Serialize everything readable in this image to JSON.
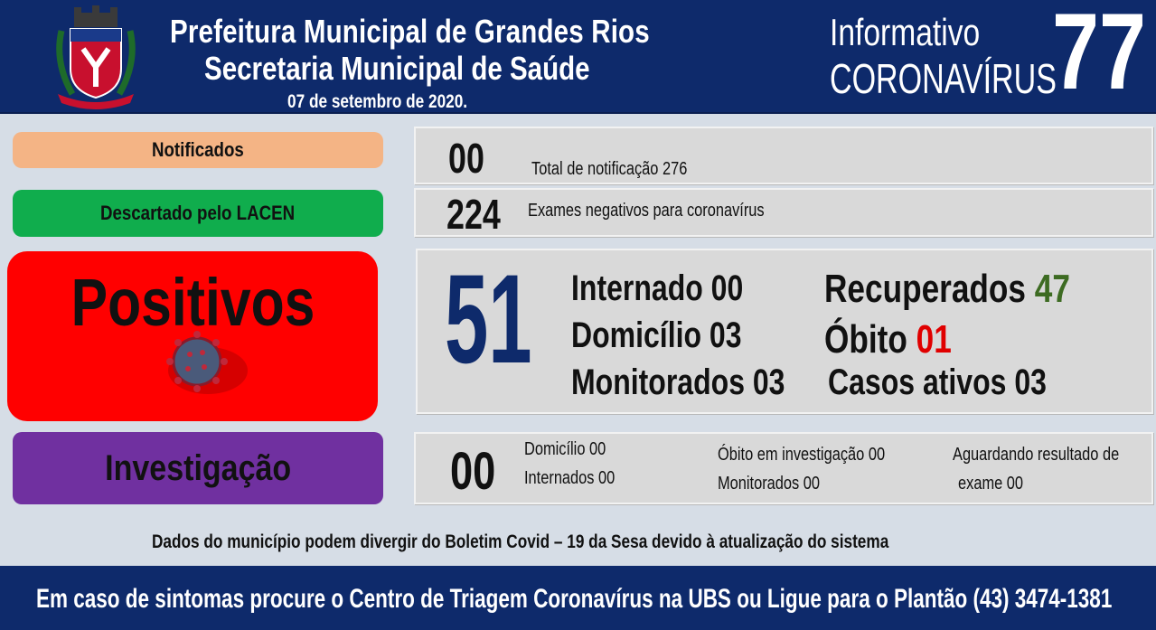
{
  "header": {
    "title_line1": "Prefeitura Municipal de Grandes Rios",
    "title_line2": "Secretaria Municipal de Saúde",
    "date": "07 de setembro  de 2020.",
    "info_line1": "Informativo",
    "info_line2": "CORONAVÍRUS",
    "bulletin_number": "77"
  },
  "notificados": {
    "label": "Notificados",
    "value": "00",
    "detail": "Total de notificação 276",
    "color": "#f4b485"
  },
  "descartado": {
    "label": "Descartado  pelo LACEN",
    "value": "224",
    "detail": "Exames negativos  para coronavírus",
    "color": "#10ad4d"
  },
  "positivos": {
    "label": "Positivos",
    "value": "51",
    "internado": "Internado 00",
    "domicilio": "Domicílio 03",
    "monitorados": "Monitorados 03",
    "recuperados_label": "Recuperados",
    "recuperados_value": "47",
    "obito_label": "Óbito",
    "obito_value": "01",
    "casos_ativos": "Casos ativos 03",
    "color": "#ff0000",
    "number_color": "#0e2a6b"
  },
  "investigacao": {
    "label": "Investigação",
    "value": "00",
    "domicilio": "Domicílio 00",
    "internados": "Internados 00",
    "obito_investigacao": "Óbito  em investigação  00",
    "monitorados": "Monitorados 00",
    "aguardando_line1": "Aguardando resultado de",
    "aguardando_line2": "exame 00",
    "color": "#7030a0"
  },
  "note": "Dados do município  podem  divergir do Boletim  Covid  – 19 da Sesa devido à atualização  do sistema",
  "footer": {
    "text": "Em caso de sintomas  procure  o Centro de Triagem  Coronavírus  na UBS ou Ligue  para o Plantão  (43) 3474-1381"
  }
}
